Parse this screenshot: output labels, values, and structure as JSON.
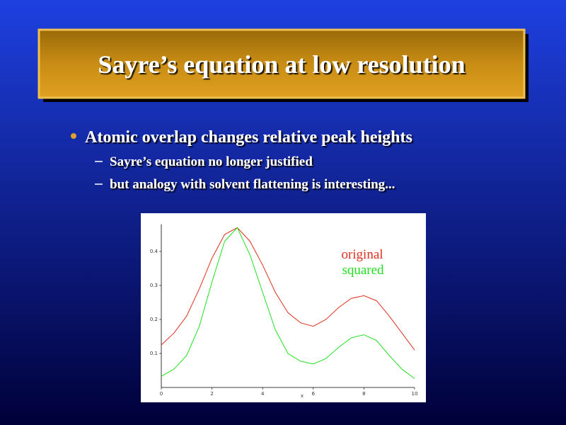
{
  "title": "Sayre’s equation at low resolution",
  "bullets": [
    {
      "text": "Atomic overlap changes relative peak heights",
      "sub": [
        "Sayre’s equation no longer justified",
        "but analogy with solvent flattening is interesting..."
      ]
    }
  ],
  "chart_data": {
    "type": "line",
    "x": [
      0,
      0.5,
      1,
      1.5,
      2,
      2.5,
      3,
      3.5,
      4,
      4.5,
      5,
      5.5,
      6,
      6.5,
      7,
      7.5,
      8,
      8.5,
      9,
      9.5,
      10
    ],
    "series": [
      {
        "name": "original",
        "color": "#e03020",
        "values": [
          0.125,
          0.16,
          0.21,
          0.29,
          0.38,
          0.45,
          0.47,
          0.43,
          0.36,
          0.28,
          0.22,
          0.19,
          0.18,
          0.2,
          0.235,
          0.262,
          0.27,
          0.255,
          0.21,
          0.16,
          0.11
        ]
      },
      {
        "name": "squared",
        "color": "#20e020",
        "values": [
          0.033,
          0.054,
          0.094,
          0.18,
          0.31,
          0.43,
          0.47,
          0.39,
          0.28,
          0.17,
          0.1,
          0.077,
          0.069,
          0.085,
          0.118,
          0.146,
          0.155,
          0.138,
          0.094,
          0.054,
          0.026
        ]
      }
    ],
    "xlabel": "x",
    "xlim": [
      0,
      10
    ],
    "xticks": [
      0,
      2,
      4,
      6,
      8,
      10
    ],
    "ylim": [
      0,
      0.48
    ],
    "yticks": [
      0.1,
      0.2,
      0.3,
      0.4
    ]
  }
}
